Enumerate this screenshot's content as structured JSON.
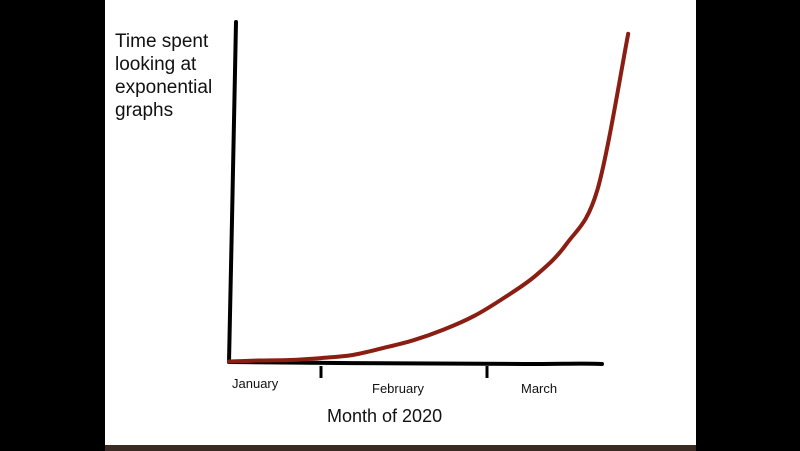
{
  "chart_data": {
    "type": "line",
    "title": "",
    "ylabel": "Time spent looking at exponential graphs",
    "xlabel": "Month of 2020",
    "categories": [
      "January",
      "February",
      "March"
    ],
    "x": [
      0.0,
      0.25,
      0.5,
      0.75,
      1.0,
      1.25,
      1.5,
      1.75,
      2.0,
      2.25,
      2.5,
      2.75,
      3.0,
      3.25
    ],
    "series": [
      {
        "values": [
          0.5,
          1.5,
          2,
          4,
          7,
          14,
          22,
          33,
          47,
          66,
          88,
          120,
          175,
          333
        ],
        "color": "#8b1e12"
      }
    ],
    "ylim": [
      0,
      345
    ],
    "xlim": [
      0,
      3.55
    ],
    "grid": false,
    "legend": "none",
    "axis_color": "#000000"
  }
}
